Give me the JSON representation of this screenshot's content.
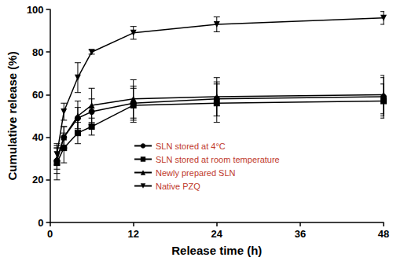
{
  "chart_data": {
    "type": "line",
    "x_label": "Release time (h)",
    "y_label": "Cumulative release (%)",
    "xlim": [
      0,
      48
    ],
    "xticks": [
      0,
      12,
      24,
      36,
      48
    ],
    "ylim": [
      0,
      100
    ],
    "yticks": [
      0,
      20,
      40,
      60,
      80,
      100
    ],
    "grid": false,
    "legend": "left",
    "series": [
      {
        "name": "SLN stored at 4°C",
        "color": "#000000",
        "marker": "circle",
        "x": [
          1,
          2,
          4,
          6,
          12,
          24,
          48
        ],
        "values": [
          29,
          40,
          49,
          52,
          56,
          58,
          59
        ],
        "errors": [
          6,
          5,
          5,
          6,
          8,
          8,
          9
        ]
      },
      {
        "name": "SLN stored at room temperature",
        "color": "#000000",
        "marker": "square",
        "x": [
          1,
          2,
          4,
          6,
          12,
          24,
          48
        ],
        "values": [
          28,
          35,
          42,
          45,
          55,
          56,
          57
        ],
        "errors": [
          8,
          7,
          5,
          4,
          8,
          9,
          8
        ]
      },
      {
        "name": "Newly prepared SLN",
        "color": "#000000",
        "marker": "triangle",
        "x": [
          1,
          2,
          4,
          6,
          12,
          24,
          48
        ],
        "values": [
          30,
          40,
          50,
          55,
          58,
          59,
          60
        ],
        "errors": [
          5,
          5,
          7,
          8,
          9,
          9,
          9
        ]
      },
      {
        "name": "Native PZQ",
        "color": "#000000",
        "marker": "triangle_down",
        "x": [
          1,
          2,
          4,
          6,
          12,
          24,
          48
        ],
        "values": [
          32,
          52,
          68,
          80,
          89,
          93,
          96
        ],
        "errors": [
          5,
          4,
          7,
          1,
          3,
          3.5,
          3
        ]
      }
    ]
  }
}
